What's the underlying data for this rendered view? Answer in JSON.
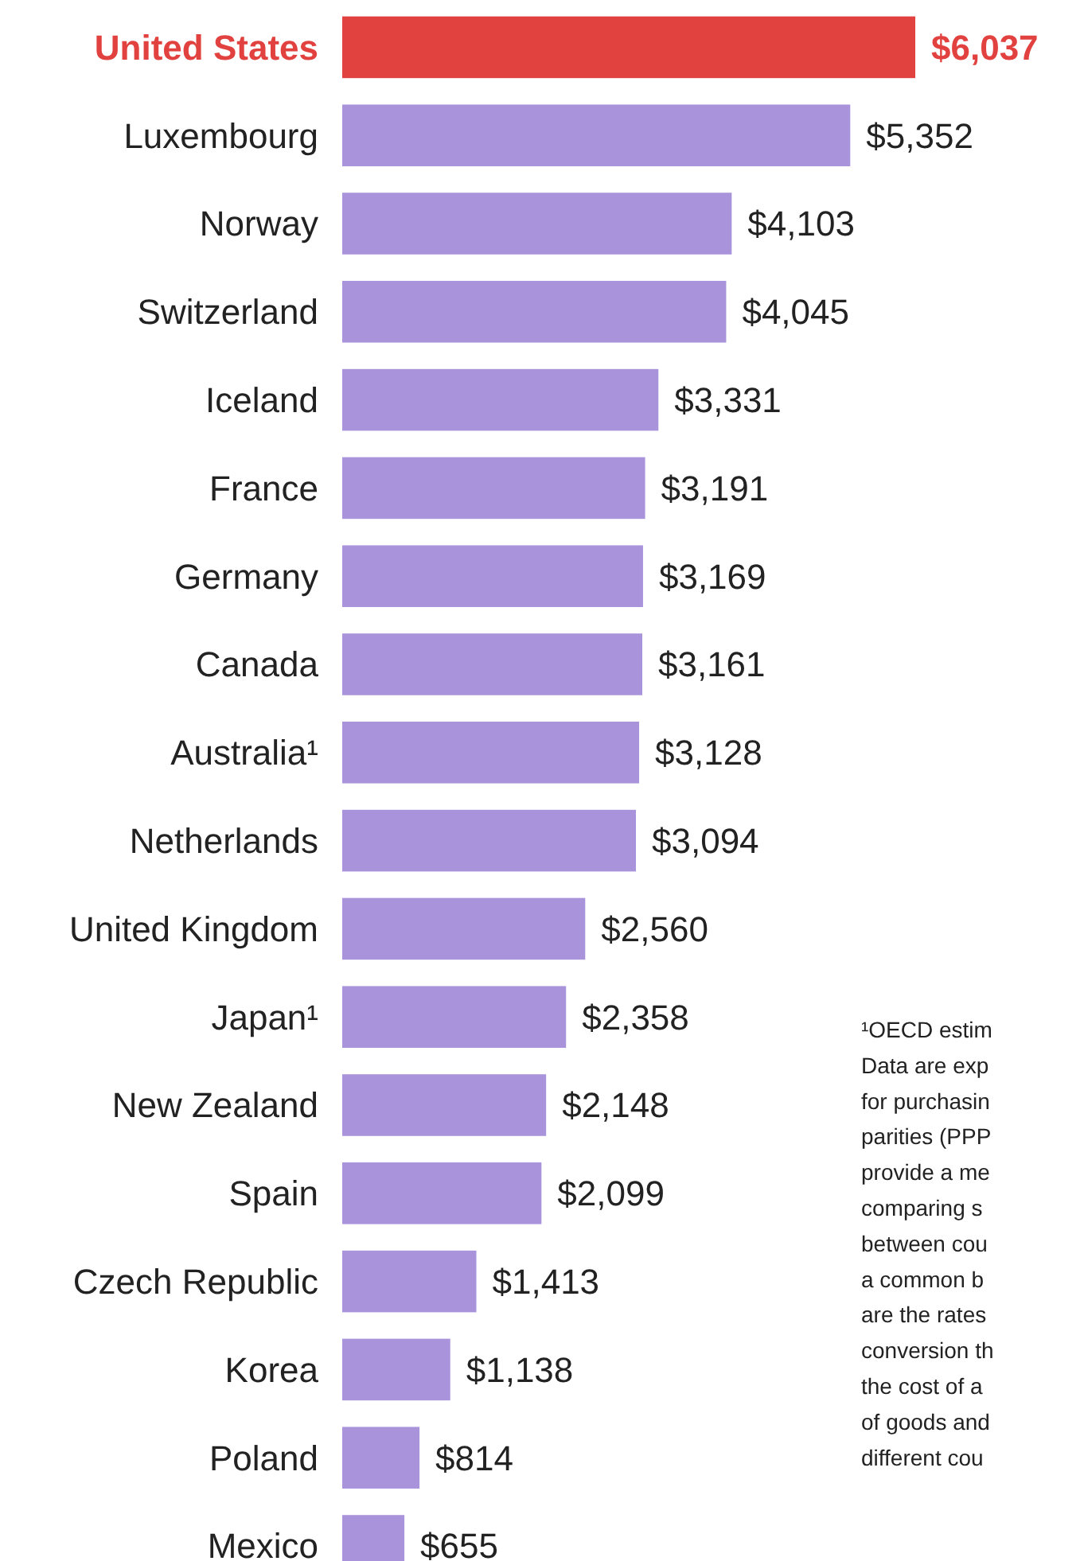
{
  "chart_data": {
    "type": "bar",
    "orientation": "horizontal",
    "categories": [
      "United States",
      "Luxembourg",
      "Norway",
      "Switzerland",
      "Iceland",
      "France",
      "Germany",
      "Canada",
      "Australia¹",
      "Netherlands",
      "United Kingdom",
      "Japan¹",
      "New Zealand",
      "Spain",
      "Czech Republic",
      "Korea",
      "Poland",
      "Mexico"
    ],
    "values": [
      6037,
      5352,
      4103,
      4045,
      3331,
      3191,
      3169,
      3161,
      3128,
      3094,
      2560,
      2358,
      2148,
      2099,
      1413,
      1138,
      814,
      655
    ],
    "value_labels": [
      "$6,037",
      "$5,352",
      "$4,103",
      "$4,045",
      "$3,331",
      "$3,191",
      "$3,169",
      "$3,161",
      "$3,128",
      "$3,094",
      "$2,560",
      "$2,358",
      "$2,148",
      "$2,099",
      "$1,413",
      "$1,138",
      "$814",
      "$655"
    ],
    "colors": [
      "#e2423f",
      "#a994dc",
      "#a994dc",
      "#a994dc",
      "#a994dc",
      "#a994dc",
      "#a994dc",
      "#a994dc",
      "#a994dc",
      "#a994dc",
      "#a994dc",
      "#a994dc",
      "#a994dc",
      "#a994dc",
      "#a994dc",
      "#a994dc",
      "#a994dc",
      "#a994dc"
    ],
    "annotations": [
      "¹OECD estim\nData are exp\nfor purchasin\nparities (PPP\nprovide a me\ncomparing s\nbetween cou\na common b\nare the rates\nconversion th\nthe cost of a\nof goods and\ndifferent cou"
    ]
  }
}
